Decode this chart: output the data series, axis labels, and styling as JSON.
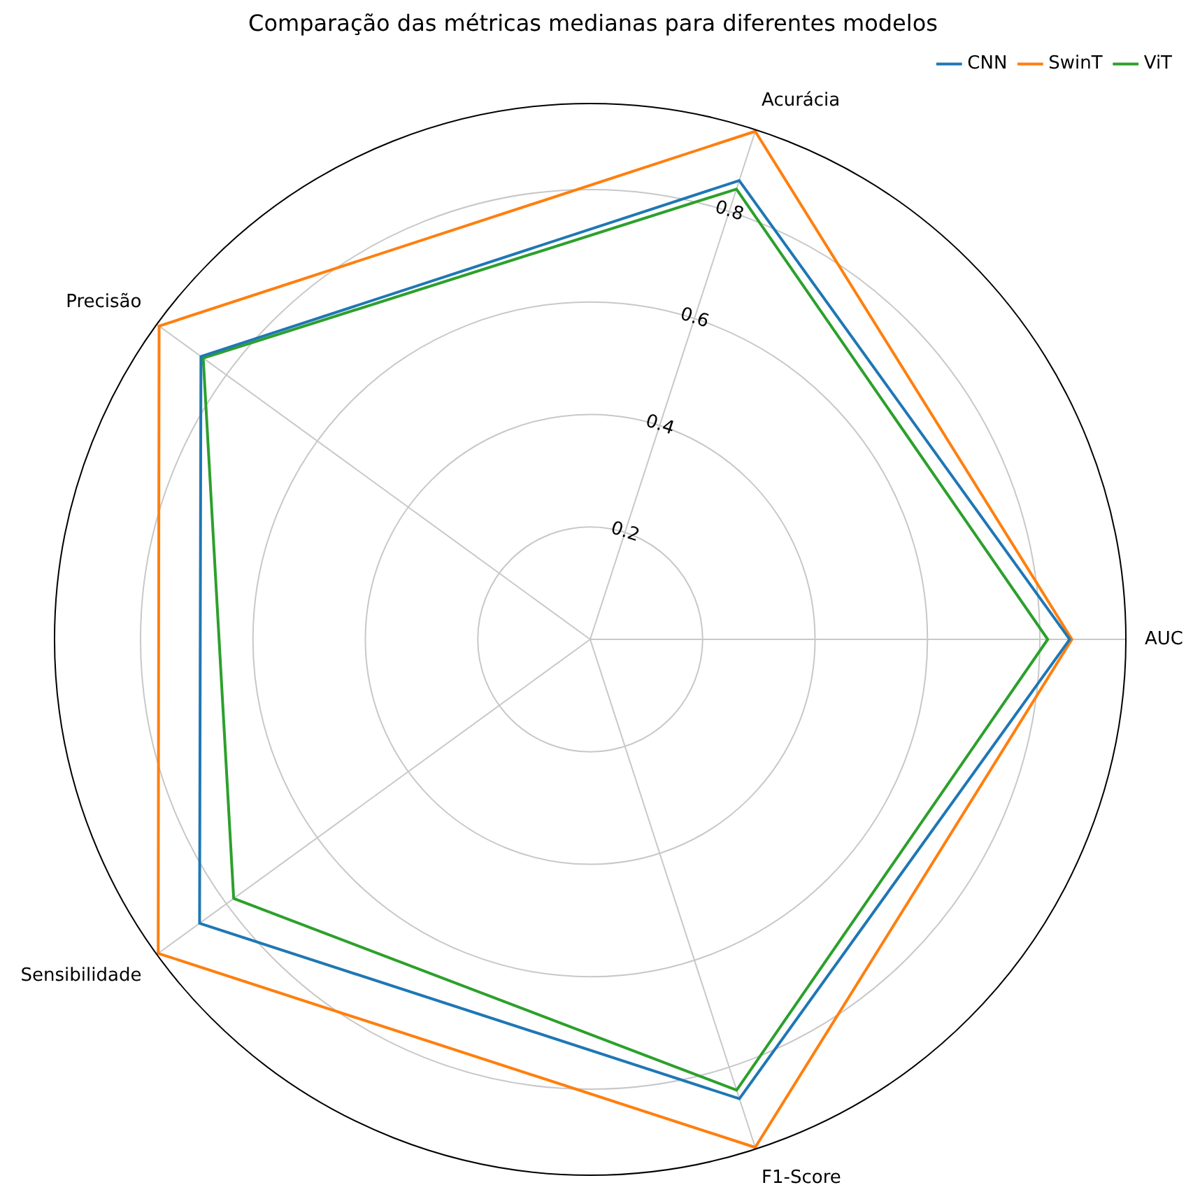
{
  "chart_data": {
    "type": "radar",
    "title": "Comparação das métricas medianas para diferentes modelos",
    "categories": [
      "Acurácia",
      "AUC",
      "F1-Score",
      "Sensibilidade",
      "Precisão"
    ],
    "series": [
      {
        "name": "CNN",
        "color": "#1f77b4",
        "values": [
          0.858,
          0.853,
          0.859,
          0.859,
          0.856
        ]
      },
      {
        "name": "SwinT",
        "color": "#ff7f0e",
        "values": [
          0.95,
          0.857,
          0.95,
          0.95,
          0.948
        ]
      },
      {
        "name": "ViT",
        "color": "#2ca02c",
        "values": [
          0.842,
          0.814,
          0.843,
          0.784,
          0.851
        ]
      }
    ],
    "ylim": [
      0,
      0.953
    ],
    "yticks": [
      0.2,
      0.4,
      0.6,
      0.8
    ],
    "grid": true,
    "legend": "top right",
    "marker": "none",
    "line_style": "solid"
  }
}
